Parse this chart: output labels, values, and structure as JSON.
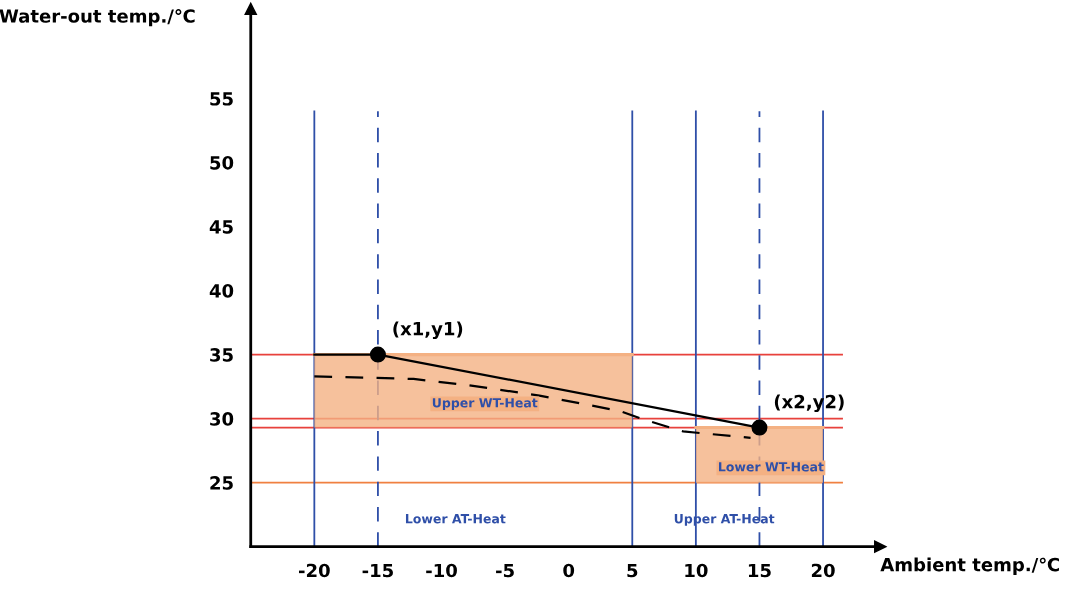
{
  "chart_data": {
    "type": "line",
    "xlabel": "Ambient temp./℃",
    "ylabel": "Water-out temp./℃",
    "xlim": [
      -25,
      24.5
    ],
    "ylim": [
      20,
      62
    ],
    "xticks": [
      -20,
      -15,
      -10,
      -5,
      0,
      5,
      10,
      15,
      20
    ],
    "yticks": [
      25,
      30,
      35,
      40,
      45,
      50,
      55
    ],
    "grid": false,
    "legend": false,
    "series": [
      {
        "name": "Upper WT-Heat",
        "type": "line",
        "color": "#f4b183",
        "x": [
          -20,
          5
        ],
        "values": [
          35,
          35
        ],
        "lower": [
          29.3,
          29.3
        ],
        "upper": [
          35,
          35
        ]
      },
      {
        "name": "Lower WT-Heat",
        "type": "line",
        "color": "#f4b183",
        "x": [
          10,
          20
        ],
        "values": [
          29.3,
          29.3
        ],
        "lower": [
          25,
          25
        ],
        "upper": [
          29.3,
          29.3
        ]
      },
      {
        "color": "#000000",
        "line_style": "solid",
        "x": [
          -20,
          -15,
          15
        ],
        "values": [
          35,
          35,
          29.3
        ]
      },
      {
        "color": "#000000",
        "line_style": "dashed",
        "x": [
          -20,
          -12.2,
          -7.8,
          -2.3,
          4.0,
          6.0,
          9.0,
          14.3
        ],
        "values": [
          33.3,
          33.1,
          32.6,
          31.8,
          30.6,
          29.9,
          29.0,
          28.5
        ]
      },
      {
        "type": "scatter",
        "color": "#000000",
        "marker": "circle",
        "x": [
          -15,
          15
        ],
        "values": [
          35,
          29.3
        ]
      }
    ],
    "ref_lines": [
      {
        "axis": "y",
        "value": 35,
        "color": "#e8413c",
        "line_style": "solid"
      },
      {
        "axis": "y",
        "value": 30,
        "color": "#e8413c",
        "line_style": "solid"
      },
      {
        "axis": "y",
        "value": 29.3,
        "color": "#e8413c",
        "line_style": "solid"
      },
      {
        "axis": "y",
        "value": 25,
        "color": "#f08040",
        "line_style": "solid"
      },
      {
        "axis": "x",
        "value": -20,
        "color": "#2f4fa8",
        "line_style": "solid"
      },
      {
        "axis": "x",
        "value": -15,
        "color": "#2f4fa8",
        "line_style": "dashed"
      },
      {
        "axis": "x",
        "value": 5,
        "color": "#2f4fa8",
        "line_style": "solid"
      },
      {
        "axis": "x",
        "value": 10,
        "color": "#2f4fa8",
        "line_style": "solid"
      },
      {
        "axis": "x",
        "value": 15,
        "color": "#2f4fa8",
        "line_style": "dashed"
      },
      {
        "axis": "x",
        "value": 20,
        "color": "#2f4fa8",
        "line_style": "solid"
      }
    ],
    "annotations": [
      {
        "text": "(x1,y1)",
        "x": -15,
        "y": 35
      },
      {
        "text": "(x2,y2)",
        "x": 15,
        "y": 29.3
      },
      "Lower AT-Heat",
      "Upper AT-Heat"
    ]
  }
}
